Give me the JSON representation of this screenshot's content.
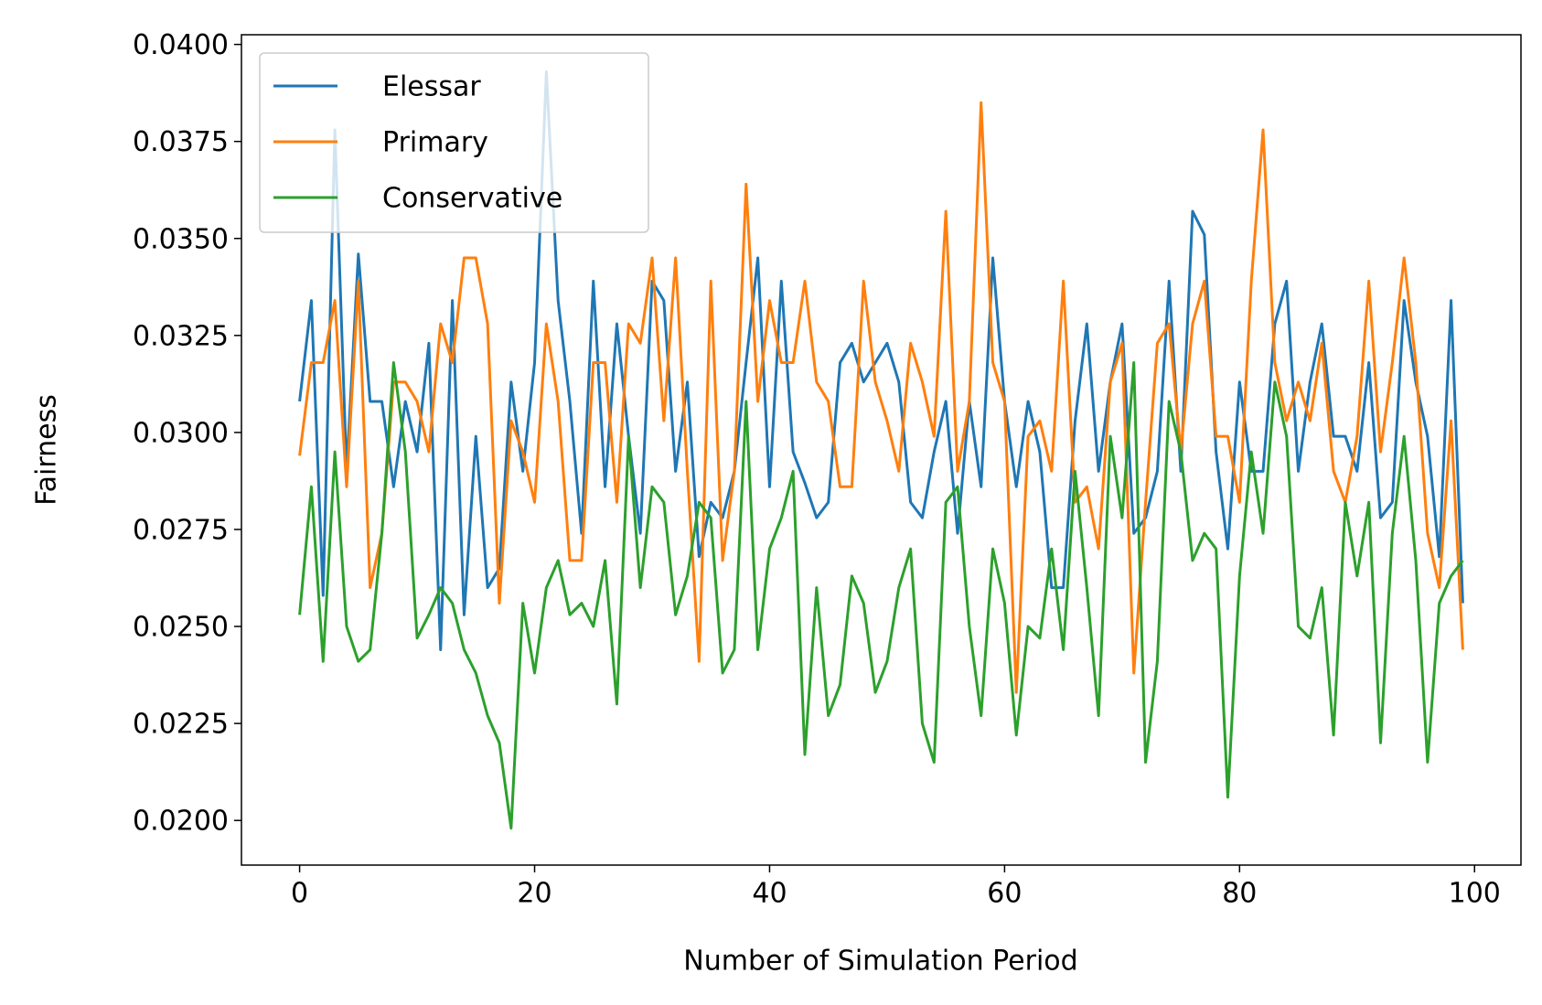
{
  "chart_data": {
    "type": "line",
    "xlabel": "Number of Simulation Period",
    "ylabel": "Fairness",
    "x": [
      0,
      1,
      2,
      3,
      4,
      5,
      6,
      7,
      8,
      9,
      10,
      11,
      12,
      13,
      14,
      15,
      16,
      17,
      18,
      19,
      20,
      21,
      22,
      23,
      24,
      25,
      26,
      27,
      28,
      29,
      30,
      31,
      32,
      33,
      34,
      35,
      36,
      37,
      38,
      39,
      40,
      41,
      42,
      43,
      44,
      45,
      46,
      47,
      48,
      49,
      50,
      51,
      52,
      53,
      54,
      55,
      56,
      57,
      58,
      59,
      60,
      61,
      62,
      63,
      64,
      65,
      66,
      67,
      68,
      69,
      70,
      71,
      72,
      73,
      74,
      75,
      76,
      77,
      78,
      79,
      80,
      81,
      82,
      83,
      84,
      85,
      86,
      87,
      88,
      89,
      90,
      91,
      92,
      93,
      94,
      95,
      96,
      97,
      98,
      99
    ],
    "series": [
      {
        "name": "Elessar",
        "color": "#1f77b4",
        "values": [
          0.0308,
          0.0334,
          0.0258,
          0.0378,
          0.029,
          0.0346,
          0.0308,
          0.0308,
          0.0286,
          0.0308,
          0.0295,
          0.0323,
          0.0244,
          0.0334,
          0.0253,
          0.0299,
          0.026,
          0.0265,
          0.0313,
          0.029,
          0.0318,
          0.0393,
          0.0334,
          0.0308,
          0.0274,
          0.0339,
          0.0286,
          0.0328,
          0.0299,
          0.0274,
          0.0339,
          0.0334,
          0.029,
          0.0313,
          0.0268,
          0.0282,
          0.0278,
          0.029,
          0.0318,
          0.0345,
          0.0286,
          0.0339,
          0.0295,
          0.0287,
          0.0278,
          0.0282,
          0.0318,
          0.0323,
          0.0313,
          0.0318,
          0.0323,
          0.0313,
          0.0282,
          0.0278,
          0.0295,
          0.0308,
          0.0274,
          0.0308,
          0.0286,
          0.0345,
          0.0308,
          0.0286,
          0.0308,
          0.0295,
          0.026,
          0.026,
          0.0303,
          0.0328,
          0.029,
          0.0313,
          0.0328,
          0.0274,
          0.0278,
          0.029,
          0.0339,
          0.029,
          0.0357,
          0.0351,
          0.0295,
          0.027,
          0.0313,
          0.029,
          0.029,
          0.0328,
          0.0339,
          0.029,
          0.0313,
          0.0328,
          0.0299,
          0.0299,
          0.029,
          0.0318,
          0.0278,
          0.0282,
          0.0334,
          0.0313,
          0.0299,
          0.0268,
          0.0334,
          0.0256
        ]
      },
      {
        "name": "Primary",
        "color": "#ff7f0e",
        "values": [
          0.0294,
          0.0318,
          0.0318,
          0.0334,
          0.0286,
          0.0339,
          0.026,
          0.0274,
          0.0313,
          0.0313,
          0.0308,
          0.0295,
          0.0328,
          0.0318,
          0.0345,
          0.0345,
          0.0328,
          0.0256,
          0.0303,
          0.0295,
          0.0282,
          0.0328,
          0.0308,
          0.0267,
          0.0267,
          0.0318,
          0.0318,
          0.0282,
          0.0328,
          0.0323,
          0.0345,
          0.0303,
          0.0345,
          0.029,
          0.0241,
          0.0339,
          0.0267,
          0.029,
          0.0364,
          0.0308,
          0.0334,
          0.0318,
          0.0318,
          0.0339,
          0.0313,
          0.0308,
          0.0286,
          0.0286,
          0.0339,
          0.0313,
          0.0303,
          0.029,
          0.0323,
          0.0313,
          0.0299,
          0.0357,
          0.029,
          0.0308,
          0.0385,
          0.0318,
          0.0308,
          0.0233,
          0.0299,
          0.0303,
          0.029,
          0.0339,
          0.0282,
          0.0286,
          0.027,
          0.0313,
          0.0323,
          0.0238,
          0.0282,
          0.0323,
          0.0328,
          0.0295,
          0.0328,
          0.0339,
          0.0299,
          0.0299,
          0.0282,
          0.0339,
          0.0378,
          0.0318,
          0.0303,
          0.0313,
          0.0303,
          0.0323,
          0.029,
          0.0282,
          0.0299,
          0.0339,
          0.0295,
          0.0318,
          0.0345,
          0.0318,
          0.0274,
          0.026,
          0.0303,
          0.0244
        ]
      },
      {
        "name": "Conservative",
        "color": "#2ca02c",
        "values": [
          0.0253,
          0.0286,
          0.0241,
          0.0295,
          0.025,
          0.0241,
          0.0244,
          0.0274,
          0.0318,
          0.0295,
          0.0247,
          0.0253,
          0.026,
          0.0256,
          0.0244,
          0.0238,
          0.0227,
          0.022,
          0.0198,
          0.0256,
          0.0238,
          0.026,
          0.0267,
          0.0253,
          0.0256,
          0.025,
          0.0267,
          0.023,
          0.0299,
          0.026,
          0.0286,
          0.0282,
          0.0253,
          0.0263,
          0.0282,
          0.0278,
          0.0238,
          0.0244,
          0.0308,
          0.0244,
          0.027,
          0.0278,
          0.029,
          0.0217,
          0.026,
          0.0227,
          0.0235,
          0.0263,
          0.0256,
          0.0233,
          0.0241,
          0.026,
          0.027,
          0.0225,
          0.0215,
          0.0282,
          0.0286,
          0.025,
          0.0227,
          0.027,
          0.0256,
          0.0222,
          0.025,
          0.0247,
          0.027,
          0.0244,
          0.029,
          0.026,
          0.0227,
          0.0299,
          0.0278,
          0.0318,
          0.0215,
          0.0241,
          0.0308,
          0.0295,
          0.0267,
          0.0274,
          0.027,
          0.0206,
          0.0263,
          0.0295,
          0.0274,
          0.0313,
          0.0299,
          0.025,
          0.0247,
          0.026,
          0.0222,
          0.0282,
          0.0263,
          0.0282,
          0.022,
          0.0274,
          0.0299,
          0.0267,
          0.0215,
          0.0256,
          0.0263,
          0.0267
        ]
      }
    ],
    "xlim": [
      -4.95,
      103.95
    ],
    "xticks": [
      0,
      20,
      40,
      60,
      80,
      100
    ],
    "ylim": [
      0.01885,
      0.04025
    ],
    "yticks": [
      {
        "value": 0.02,
        "label": "0.0200"
      },
      0.0225,
      {
        "value": 0.025,
        "label": "0.0250"
      },
      0.0275,
      {
        "value": 0.03,
        "label": "0.0300"
      },
      0.0325,
      {
        "value": 0.035,
        "label": "0.0350"
      },
      0.0375,
      {
        "value": 0.04,
        "label": "0.0400"
      }
    ],
    "legend": "upper left",
    "grid": false
  }
}
